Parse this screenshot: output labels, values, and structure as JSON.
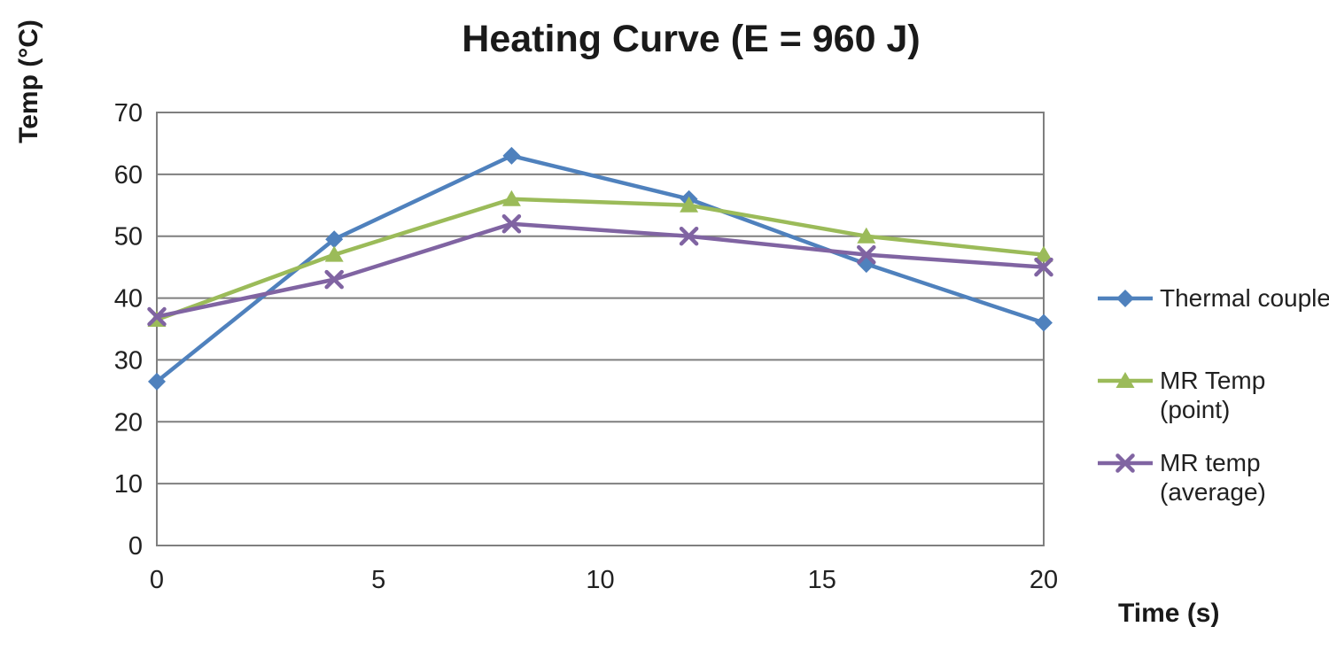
{
  "page": {
    "background": "#ffffff",
    "text_color": "#212121",
    "title_color": "#1a1a1a",
    "gridline_color": "#7f7f7f"
  },
  "chart_data": {
    "type": "line",
    "title": "Heating Curve (E = 960 J)",
    "xlabel": "Time (s)",
    "ylabel": "Temp (°C)",
    "x": [
      0,
      4,
      8,
      12,
      16,
      20
    ],
    "series": [
      {
        "name": "Thermal couple",
        "legend_lines": [
          "Thermal couple"
        ],
        "marker": "diamond",
        "color": "#4F81BD",
        "values": [
          26.5,
          49.5,
          63,
          56,
          45.5,
          36
        ]
      },
      {
        "name": "MR Temp (point)",
        "legend_lines": [
          "MR Temp",
          "(point)"
        ],
        "marker": "triangle",
        "color": "#9BBB59",
        "values": [
          36.5,
          47,
          56,
          55,
          50,
          47
        ]
      },
      {
        "name": "MR temp (average)",
        "legend_lines": [
          "MR temp",
          "(average)"
        ],
        "marker": "x",
        "color": "#8064A2",
        "values": [
          37,
          43,
          52,
          50,
          47,
          45
        ]
      }
    ],
    "xlim": [
      0,
      20
    ],
    "ylim": [
      0,
      70
    ],
    "xticks": [
      0,
      5,
      10,
      15,
      20
    ],
    "yticks": [
      0,
      10,
      20,
      30,
      40,
      50,
      60,
      70
    ],
    "grid": true,
    "legend_position": "right"
  }
}
